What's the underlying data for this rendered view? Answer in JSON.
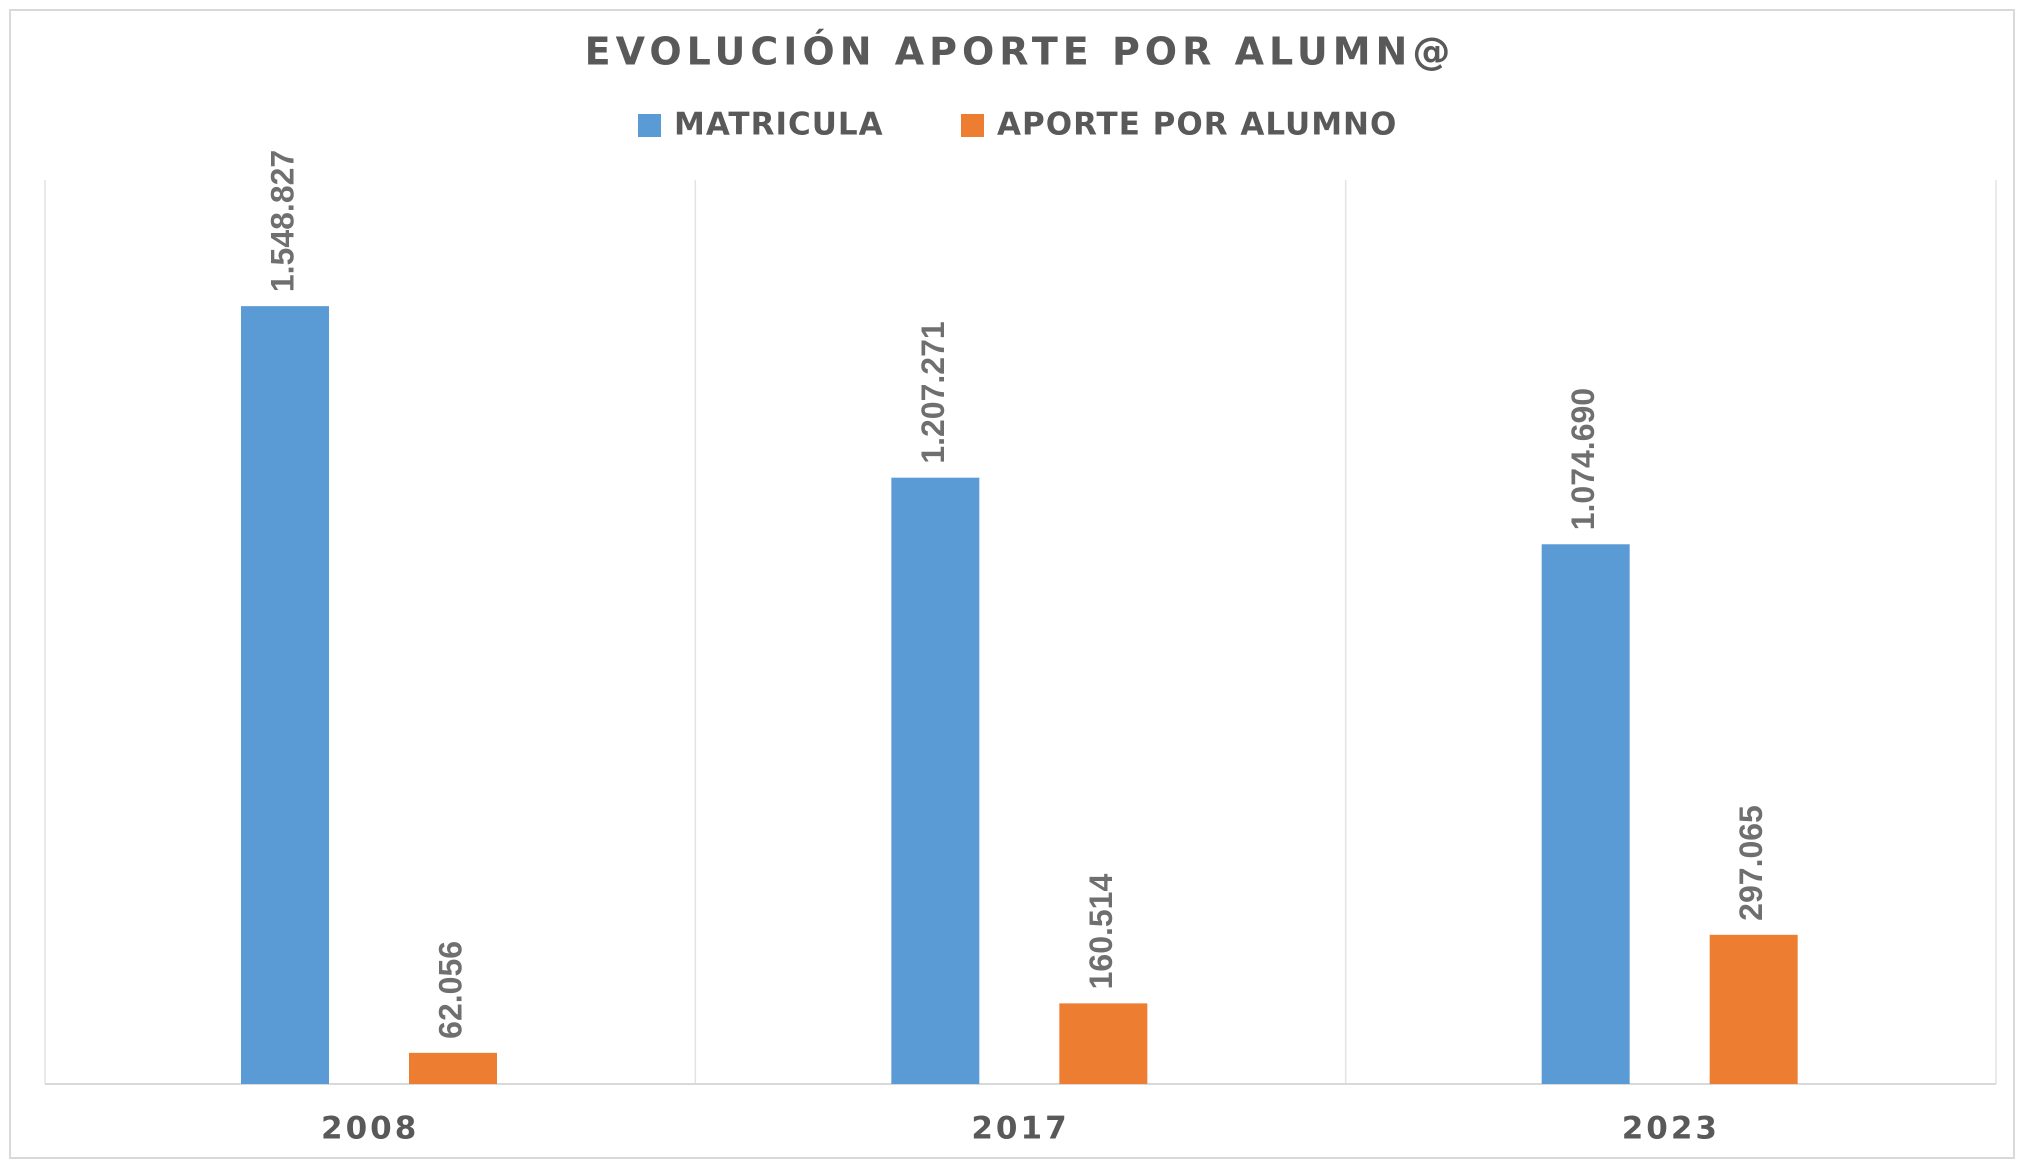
{
  "chart_data": {
    "type": "bar",
    "title": "EVOLUCIÓN APORTE POR ALUMN@",
    "categories": [
      "2008",
      "2017",
      "2023"
    ],
    "series": [
      {
        "name": "MATRICULA",
        "color": "#5b9bd5",
        "values": [
          1548827,
          1207271,
          1074690
        ],
        "value_labels": [
          "1.548.827",
          "1.207.271",
          "1.074.690"
        ]
      },
      {
        "name": "APORTE POR ALUMNO",
        "color": "#ed7d31",
        "values": [
          62056,
          160514,
          297065
        ],
        "value_labels": [
          "62.056",
          "160.514",
          "297.065"
        ]
      }
    ],
    "ylim": [
      0,
      1800000
    ],
    "legend": "top"
  }
}
